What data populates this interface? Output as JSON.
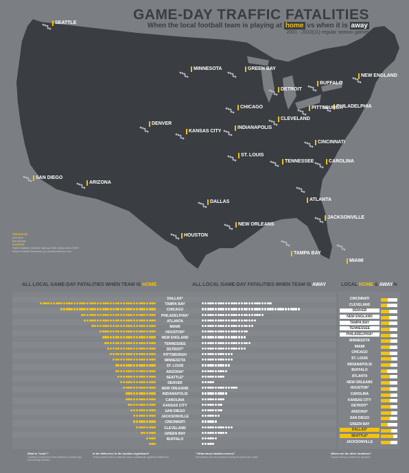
{
  "header": {
    "title": "GAME-DAY TRAFFIC FATALITIES",
    "subtitle_pre": "When the local football team is playing at",
    "subtitle_home": "home",
    "subtitle_mid": "vs when it is",
    "subtitle_away": "away",
    "seasons": "2001 - 2010(11) regular season games"
  },
  "colors": {
    "background": "#7b7f84",
    "land": "#3a3d41",
    "home": "#f3c20f",
    "away": "#ffffff"
  },
  "map_labels": [
    "SEATTLE",
    "MINNESOTA",
    "GREEN BAY",
    "BUFFALO",
    "NEW ENGLAND",
    "DETROIT",
    "CHICAGO",
    "PHILADELPHIA",
    "DENVER",
    "KANSAS CITY",
    "INDIANAPOLIS",
    "CLEVELAND",
    "PITTSBURGH",
    "CINCINNATI",
    "ST. LOUIS",
    "TENNESSEE",
    "CAROLINA",
    "SAN DIEGO",
    "ARIZONA",
    "DALLAS",
    "ATLANTA",
    "NEW ORLEANS",
    "JACKSONVILLE",
    "HOUSTON",
    "TAMPA BAY",
    "MIAMI"
  ],
  "credits": {
    "created_by": "CREATED BY",
    "line1": "Amit Stein",
    "line2": "Bart Bennett",
    "sources": "SOURCES",
    "src1": "Traffic Fatalities | National Highway Traffic Safety Admin FARS",
    "src2": "Historic Football Schedules | pro-football-reference.com"
  },
  "sections": {
    "home_pre": "ALL LOCAL GAME-DAY FATALITIES WHEN TEAM IS",
    "home_word": "HOME",
    "away_pre": "ALL LOCAL GAME-DAY FATALITIES WHEN TEAM IS",
    "away_word": "AWAY",
    "ratio_pre": "LOCAL",
    "ratio_home": "HOME",
    "ratio_amp": "&",
    "ratio_away": "AWAY",
    "ratio_suffix": "%"
  },
  "home_away_rows": [
    {
      "team": "DALLAS*",
      "home": 45,
      "away": 27
    },
    {
      "team": "TAMPA BAY",
      "home": 37,
      "away": 38
    },
    {
      "team": "CHICAGO",
      "home": 29,
      "away": 24
    },
    {
      "team": "PHILADELPHIA*",
      "home": 28,
      "away": 21
    },
    {
      "team": "ATLANTA",
      "home": 25,
      "away": 20
    },
    {
      "team": "MIAMI",
      "home": 22,
      "away": 18
    },
    {
      "team": "HOUSTON*",
      "home": 21,
      "away": 17
    },
    {
      "team": "NEW ENGLAND",
      "home": 20,
      "away": 19
    },
    {
      "team": "TENNESSEE",
      "home": 19,
      "away": 17
    },
    {
      "team": "DETROIT*",
      "home": 18,
      "away": 12
    },
    {
      "team": "PITTSBURGH",
      "home": 17,
      "away": 12
    },
    {
      "team": "MINNESOTA",
      "home": 16,
      "away": 11
    },
    {
      "team": "ST. LOUIS",
      "home": 16,
      "away": 10
    },
    {
      "team": "ARIZONA*",
      "home": 15,
      "away": 9
    },
    {
      "team": "SEATTLE*",
      "home": 14,
      "away": 5
    },
    {
      "team": "DENVER",
      "home": 13,
      "away": 14
    },
    {
      "team": "NEW ORLEANS",
      "home": 12,
      "away": 10
    },
    {
      "team": "INDIANAPOLIS",
      "home": 12,
      "away": 9
    },
    {
      "team": "CAROLINA",
      "home": 11,
      "away": 8
    },
    {
      "team": "KANSAS CITY",
      "home": 10,
      "away": 8
    },
    {
      "team": "SAN DIEGO",
      "home": 9,
      "away": 7
    },
    {
      "team": "JACKSONVILLE",
      "home": 9,
      "away": 6
    },
    {
      "team": "CINCINNATI",
      "home": 8,
      "away": 12
    },
    {
      "team": "CLEVELAND",
      "home": 6,
      "away": 10
    },
    {
      "team": "GREEN BAY",
      "home": 4,
      "away": 6
    },
    {
      "team": "BUFFALO",
      "home": 3,
      "away": 5
    }
  ],
  "ratio_rows": [
    {
      "team": "CINCINNATI",
      "home_pct": 40,
      "hl": ""
    },
    {
      "team": "CLEVELAND",
      "home_pct": 38,
      "hl": ""
    },
    {
      "team": "DENVER",
      "home_pct": 48,
      "hl": "away"
    },
    {
      "team": "NEW ENGLAND",
      "home_pct": 51,
      "hl": "away"
    },
    {
      "team": "TAMPA BAY",
      "home_pct": 49,
      "hl": "away"
    },
    {
      "team": "TENNESSEE",
      "home_pct": 53,
      "hl": "away"
    },
    {
      "team": "PHILADELPHIA*",
      "home_pct": 57,
      "hl": "away"
    },
    {
      "team": "MINNESOTA",
      "home_pct": 59,
      "hl": ""
    },
    {
      "team": "MIAMI",
      "home_pct": 55,
      "hl": ""
    },
    {
      "team": "CHICAGO",
      "home_pct": 55,
      "hl": ""
    },
    {
      "team": "ST. LOUIS",
      "home_pct": 62,
      "hl": ""
    },
    {
      "team": "INDIANAPOLIS",
      "home_pct": 57,
      "hl": ""
    },
    {
      "team": "BUFFALO",
      "home_pct": 38,
      "hl": ""
    },
    {
      "team": "ATLANTA",
      "home_pct": 56,
      "hl": ""
    },
    {
      "team": "NEW ORLEANS",
      "home_pct": 55,
      "hl": ""
    },
    {
      "team": "HOUSTON*",
      "home_pct": 55,
      "hl": ""
    },
    {
      "team": "CAROLINA",
      "home_pct": 58,
      "hl": ""
    },
    {
      "team": "KANSAS CITY",
      "home_pct": 56,
      "hl": ""
    },
    {
      "team": "DETROIT*",
      "home_pct": 60,
      "hl": ""
    },
    {
      "team": "ARIZONA*",
      "home_pct": 62,
      "hl": ""
    },
    {
      "team": "SAN DIEGO",
      "home_pct": 56,
      "hl": ""
    },
    {
      "team": "GREEN BAY",
      "home_pct": 40,
      "hl": ""
    },
    {
      "team": "DALLAS*",
      "home_pct": 62,
      "hl": "home"
    },
    {
      "team": "SEATTLE*",
      "home_pct": 74,
      "hl": "home"
    },
    {
      "team": "JACKSONVILLE",
      "home_pct": 60,
      "hl": ""
    }
  ],
  "footer": {
    "c1_h": "What is \"local\"?",
    "c1": "Counties in which the home stadium is located plus surrounding counties.",
    "c2_h": "Is the difference in the location significant?",
    "c2": "Teams marked with an asterisk show a statistically significant difference.",
    "c3_h": "* What about stadium moves?",
    "c3": "Relocations and new stadiums during the period are noted.",
    "c4_h": "Where are the other locations?",
    "c4": "Teams sharing a market are grouped."
  }
}
